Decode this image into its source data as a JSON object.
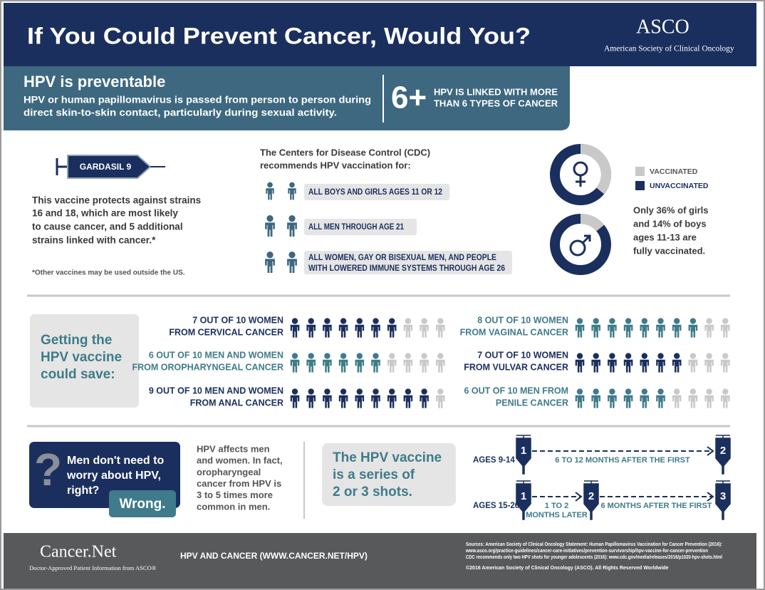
{
  "header": {
    "title": "If You Could Prevent Cancer, Would You?",
    "logo": "ASCO",
    "logo_subtitle": "American Society of Clinical Oncology"
  },
  "hpv_panel": {
    "title": "HPV is preventable",
    "text": [
      "HPV or human papillomavirus is passed from person to person during",
      "direct skin-to-skin contact, particularly during sexual activity."
    ],
    "stat": "6+",
    "stat_text": [
      "HPV IS LINKED WITH MORE",
      "THAN 6 TYPES OF CANCER"
    ]
  },
  "vaccine": {
    "name": "GARDASIL 9",
    "text": [
      "This vaccine protects against strains",
      "16 and 18, which are most likely",
      "to cause cancer, and 5 additional",
      "strains linked with cancer.*"
    ],
    "footnote": "*Other vaccines may be used outside the US."
  },
  "cdc": {
    "title": [
      "The Centers for Disease Control (CDC)",
      "recommends HPV vaccination for:"
    ],
    "groups": [
      {
        "label": [
          "ALL BOYS AND GIRLS AGES 11 OR 12"
        ]
      },
      {
        "label": [
          "ALL MEN THROUGH AGE 21"
        ]
      },
      {
        "label": [
          "ALL WOMEN, GAY OR BISEXUAL MEN, AND PEOPLE",
          "WITH LOWERED IMMUNE SYSTEMS THROUGH AGE 26"
        ]
      }
    ]
  },
  "vaccination_rates": {
    "legend": [
      "VACCINATED",
      "UNVACCINATED"
    ],
    "colors": [
      "#c9c9c9",
      "#1b2f5e"
    ],
    "female_vaccinated": 36,
    "male_vaccinated": 14,
    "text": [
      "Only 36% of girls",
      "and 14% of boys",
      "ages 11-13 are",
      "fully vaccinated."
    ]
  },
  "savings": {
    "title": [
      "Getting the",
      "HPV vaccine",
      "could save:"
    ],
    "unsaved_color": "#c9c9c9",
    "items": [
      {
        "label": [
          "7 OUT OF 10 WOMEN",
          "FROM CERVICAL CANCER"
        ],
        "saved": 7,
        "total": 10,
        "color": "#1b2f5e"
      },
      {
        "label": [
          "6 OUT OF 10 MEN AND WOMEN",
          "FROM OROPHARYNGEAL CANCER"
        ],
        "saved": 6,
        "total": 10,
        "color": "#3f7b8a"
      },
      {
        "label": [
          "9 OUT OF 10 MEN AND WOMEN",
          "FROM ANAL CANCER"
        ],
        "saved": 9,
        "total": 10,
        "color": "#1b2f5e"
      },
      {
        "label": [
          "8 OUT OF 10 WOMEN",
          "FROM VAGINAL CANCER"
        ],
        "saved": 8,
        "total": 10,
        "color": "#3f7b8a"
      },
      {
        "label": [
          "7 OUT OF 10 WOMEN",
          "FROM VULVAR CANCER"
        ],
        "saved": 7,
        "total": 10,
        "color": "#1b2f5e"
      },
      {
        "label": [
          "6 OUT OF 10 MEN FROM",
          "PENILE CANCER"
        ],
        "saved": 6,
        "total": 10,
        "color": "#3f7b8a"
      }
    ]
  },
  "myth": {
    "symbol": "?",
    "question": [
      "Men don't need to",
      "worry about HPV,",
      "right?"
    ],
    "answer": "Wrong.",
    "text": [
      "HPV affects men",
      "and women. In fact,",
      "oropharyngeal",
      "cancer from HPV is",
      "3 to 5 times more",
      "common in men."
    ]
  },
  "schedule": {
    "title": [
      "The HPV vaccine",
      "is a series of",
      "2 or 3 shots."
    ],
    "rows": [
      {
        "ages": "AGES 9-14",
        "shots": [
          1,
          2
        ],
        "intervals": [
          [
            "6 TO 12 MONTHS AFTER THE FIRST"
          ]
        ]
      },
      {
        "ages": "AGES 15-26",
        "shots": [
          1,
          2,
          3
        ],
        "intervals": [
          [
            "1 TO 2",
            "MONTHS LATER"
          ],
          [
            "6 MONTHS AFTER THE FIRST"
          ]
        ]
      }
    ]
  },
  "footer": {
    "logo": "Cancer.Net",
    "logo_subtitle": "Doctor-Approved Patient Information from ASCO®",
    "link": "HPV AND CANCER (WWW.CANCER.NET/HPV)",
    "sources": [
      "Sources: American Society of Clinical Oncology Statement: Human Papillomavirus Vaccination for Cancer Prevention (2016):",
      "www.asco.org/practice-guidelines/cancer-care-initiatives/prevention-survivorship/hpv-vaccine-for-cancer-prevention",
      "CDC recommends only two HPV shots for younger adolescents (2016): www.cdc.gov/media/releases/2016/p1020-hpv-shots.html",
      "©2016 American Society of Clinical Oncology (ASCO). All Rights Reserved Worldwide"
    ]
  }
}
